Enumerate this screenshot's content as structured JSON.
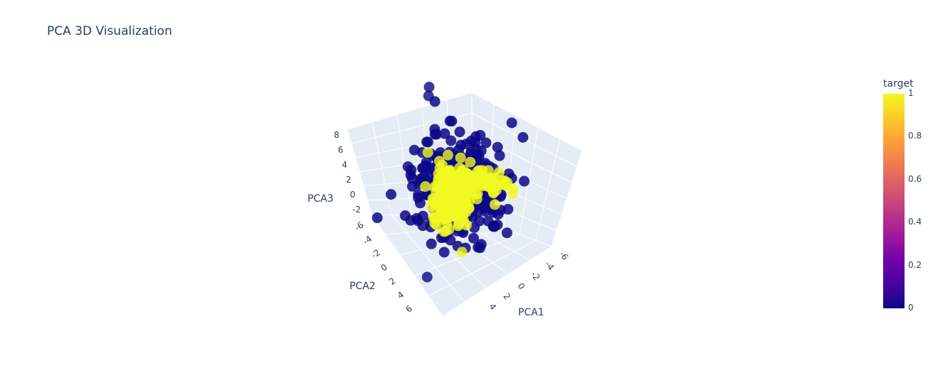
{
  "chart_data": {
    "type": "scatter",
    "title": "PCA 3D Visualization",
    "axes": {
      "x": {
        "label": "PCA1",
        "ticks": [
          "-6",
          "-4",
          "-2",
          "0",
          "2",
          "4"
        ]
      },
      "y": {
        "label": "PCA2",
        "ticks": [
          "-6",
          "-4",
          "-2",
          "0",
          "2",
          "4",
          "6"
        ]
      },
      "z": {
        "label": "PCA3",
        "ticks": [
          "-2",
          "0",
          "2",
          "4",
          "6",
          "8"
        ]
      }
    },
    "colorbar": {
      "title": "target",
      "ticks": [
        "0",
        "0.2",
        "0.4",
        "0.6",
        "0.8",
        "1"
      ],
      "range": [
        0,
        1
      ]
    },
    "colorscale": [
      "#0d0887",
      "#46039f",
      "#7201a8",
      "#9c179e",
      "#bd3786",
      "#d8576b",
      "#ed7953",
      "#fb9f3a",
      "#fdca26",
      "#f0f921"
    ],
    "series": [
      {
        "target": 0,
        "color": "#0d0887",
        "count_estimate": 320
      },
      {
        "target": 1,
        "color": "#f0f921",
        "count_estimate": 260
      }
    ],
    "outliers": [
      {
        "target": 0,
        "x": -4.5,
        "y": -6.0,
        "z": 8.5
      },
      {
        "target": 0,
        "x": -4.0,
        "y": -5.5,
        "z": 8.0
      },
      {
        "target": 0,
        "x": -3.5,
        "y": -5.0,
        "z": 4.0
      },
      {
        "target": 0,
        "x": 4.0,
        "y": 6.5,
        "z": -1.0
      }
    ]
  }
}
